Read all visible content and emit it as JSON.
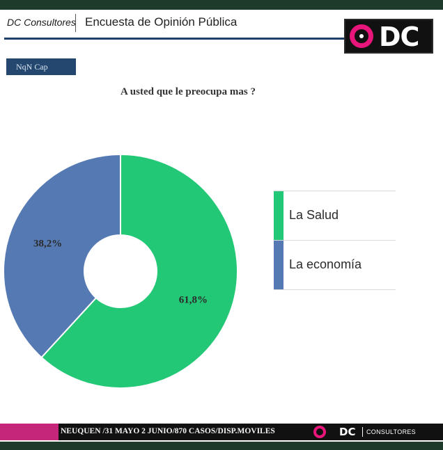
{
  "header": {
    "brand": "DC Consultores",
    "title": "Encuesta de Opinión Pública",
    "logo_text": "DC"
  },
  "tag": "NqN Cap",
  "chart_data": {
    "type": "pie",
    "style": "donut",
    "title": "A usted que le preocupa mas ?",
    "categories": [
      "La Salud",
      "La economía"
    ],
    "values": [
      61.8,
      38.2
    ],
    "data_labels": [
      "61,8%",
      "38,2%"
    ],
    "colors": [
      "#22c875",
      "#5579b3"
    ],
    "legend_placement": "right"
  },
  "footer": {
    "text": "NEUQUEN /31 MAYO 2 JUNIO/870 CASOS/DISP.MOVILES",
    "logo_dc": "DC",
    "logo_consultores": "CONSULTORES"
  },
  "colors": {
    "frame": "#1d3a2b",
    "header_rule": "#1f3f6e",
    "tag_bg": "#24476f",
    "footer_pink": "#c6267a",
    "logo_pink": "#e8157a"
  }
}
